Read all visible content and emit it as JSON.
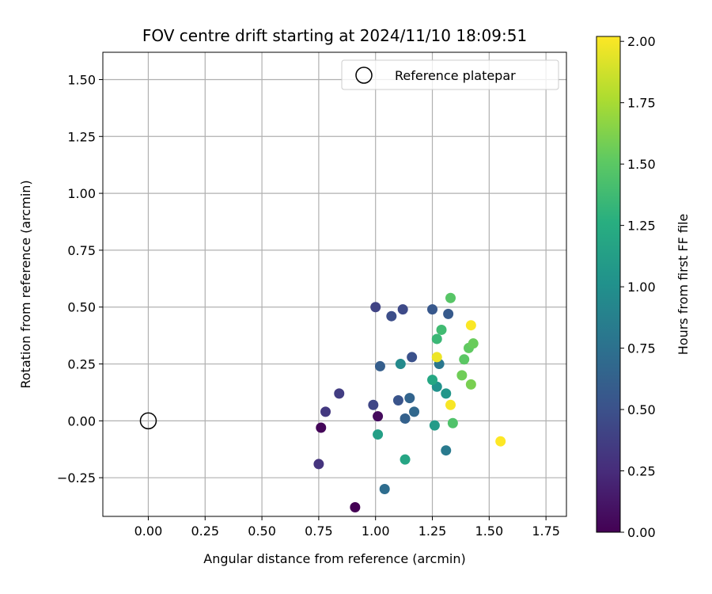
{
  "chart_data": {
    "type": "scatter",
    "title": "FOV centre drift starting at 2024/11/10 18:09:51",
    "xlabel": "Angular distance from reference (arcmin)",
    "ylabel": "Rotation from reference (arcmin)",
    "xlim": [
      -0.2,
      1.84
    ],
    "ylim": [
      -0.42,
      1.62
    ],
    "x_ticks": [
      0.0,
      0.25,
      0.5,
      0.75,
      1.0,
      1.25,
      1.5,
      1.75
    ],
    "x_tick_labels": [
      "0.00",
      "0.25",
      "0.50",
      "0.75",
      "1.00",
      "1.25",
      "1.50",
      "1.75"
    ],
    "y_ticks": [
      -0.25,
      0.0,
      0.25,
      0.5,
      0.75,
      1.0,
      1.25,
      1.5
    ],
    "y_tick_labels": [
      "−0.25",
      "0.00",
      "0.25",
      "0.50",
      "0.75",
      "1.00",
      "1.25",
      "1.50"
    ],
    "grid": true,
    "legend": {
      "placement": "top-right",
      "entries": [
        "Reference platepar"
      ]
    },
    "reference_point": {
      "x": 0.0,
      "y": 0.0
    },
    "colorbar": {
      "label": "Hours from first FF file",
      "range": [
        0.0,
        2.02
      ],
      "ticks": [
        0.0,
        0.25,
        0.5,
        0.75,
        1.0,
        1.25,
        1.5,
        1.75,
        2.0
      ],
      "tick_labels": [
        "0.00",
        "0.25",
        "0.50",
        "0.75",
        "1.00",
        "1.25",
        "1.50",
        "1.75",
        "2.00"
      ],
      "colormap": "viridis"
    },
    "points": [
      {
        "x": 0.91,
        "y": -0.38,
        "c": 0.0
      },
      {
        "x": 0.76,
        "y": -0.03,
        "c": 0.03
      },
      {
        "x": 1.01,
        "y": 0.02,
        "c": 0.06
      },
      {
        "x": 0.75,
        "y": -0.19,
        "c": 0.3
      },
      {
        "x": 0.78,
        "y": 0.04,
        "c": 0.33
      },
      {
        "x": 0.84,
        "y": 0.12,
        "c": 0.36
      },
      {
        "x": 1.0,
        "y": 0.5,
        "c": 0.4
      },
      {
        "x": 0.99,
        "y": 0.07,
        "c": 0.42
      },
      {
        "x": 1.12,
        "y": 0.49,
        "c": 0.45
      },
      {
        "x": 1.07,
        "y": 0.46,
        "c": 0.48
      },
      {
        "x": 1.16,
        "y": 0.28,
        "c": 0.5
      },
      {
        "x": 1.1,
        "y": 0.09,
        "c": 0.52
      },
      {
        "x": 1.25,
        "y": 0.49,
        "c": 0.55
      },
      {
        "x": 1.32,
        "y": 0.47,
        "c": 0.57
      },
      {
        "x": 1.02,
        "y": 0.24,
        "c": 0.6
      },
      {
        "x": 1.13,
        "y": 0.01,
        "c": 0.62
      },
      {
        "x": 1.15,
        "y": 0.1,
        "c": 0.65
      },
      {
        "x": 1.17,
        "y": 0.04,
        "c": 0.68
      },
      {
        "x": 1.04,
        "y": -0.3,
        "c": 0.72
      },
      {
        "x": 1.28,
        "y": 0.25,
        "c": 0.8
      },
      {
        "x": 1.31,
        "y": -0.13,
        "c": 0.82
      },
      {
        "x": 1.11,
        "y": 0.25,
        "c": 0.95
      },
      {
        "x": 1.27,
        "y": 0.15,
        "c": 1.02
      },
      {
        "x": 1.31,
        "y": 0.12,
        "c": 1.05
      },
      {
        "x": 1.26,
        "y": -0.02,
        "c": 1.1
      },
      {
        "x": 1.01,
        "y": -0.06,
        "c": 1.13
      },
      {
        "x": 1.13,
        "y": -0.17,
        "c": 1.18
      },
      {
        "x": 1.25,
        "y": 0.18,
        "c": 1.2
      },
      {
        "x": 1.27,
        "y": 0.36,
        "c": 1.35
      },
      {
        "x": 1.29,
        "y": 0.4,
        "c": 1.38
      },
      {
        "x": 1.34,
        "y": -0.01,
        "c": 1.45
      },
      {
        "x": 1.33,
        "y": 0.54,
        "c": 1.48
      },
      {
        "x": 1.39,
        "y": 0.27,
        "c": 1.5
      },
      {
        "x": 1.41,
        "y": 0.32,
        "c": 1.52
      },
      {
        "x": 1.43,
        "y": 0.34,
        "c": 1.55
      },
      {
        "x": 1.38,
        "y": 0.2,
        "c": 1.57
      },
      {
        "x": 1.42,
        "y": 0.16,
        "c": 1.6
      },
      {
        "x": 1.27,
        "y": 0.28,
        "c": 1.97
      },
      {
        "x": 1.33,
        "y": 0.07,
        "c": 2.0
      },
      {
        "x": 1.42,
        "y": 0.42,
        "c": 2.01
      },
      {
        "x": 1.55,
        "y": -0.09,
        "c": 2.02
      }
    ]
  }
}
